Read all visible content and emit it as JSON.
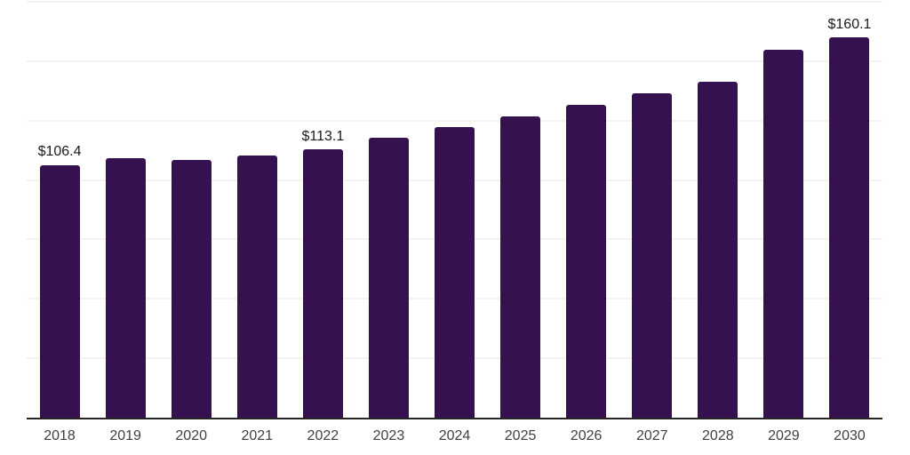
{
  "chart_data": {
    "type": "bar",
    "title": "",
    "xlabel": "",
    "ylabel": "",
    "categories": [
      "2018",
      "2019",
      "2020",
      "2021",
      "2022",
      "2023",
      "2024",
      "2025",
      "2026",
      "2027",
      "2028",
      "2029",
      "2030"
    ],
    "values": [
      106.4,
      109.3,
      108.6,
      110.5,
      113.1,
      117.9,
      122.3,
      126.8,
      131.6,
      136.5,
      141.4,
      154.9,
      160.1
    ],
    "bar_labels": [
      "$106.4",
      "",
      "",
      "",
      "$113.1",
      "",
      "",
      "",
      "",
      "",
      "",
      "",
      "$160.1"
    ],
    "ylim": [
      0,
      175
    ],
    "grid_interval": 25,
    "grid": true,
    "legend": "none",
    "colors": {
      "background": "#ffffff",
      "bar": "#351150",
      "axis_line": "#262626",
      "gridline": "#f3f3f3",
      "x_tick_label": "#3f3f3f",
      "value_label": "#1a1a1a"
    }
  }
}
